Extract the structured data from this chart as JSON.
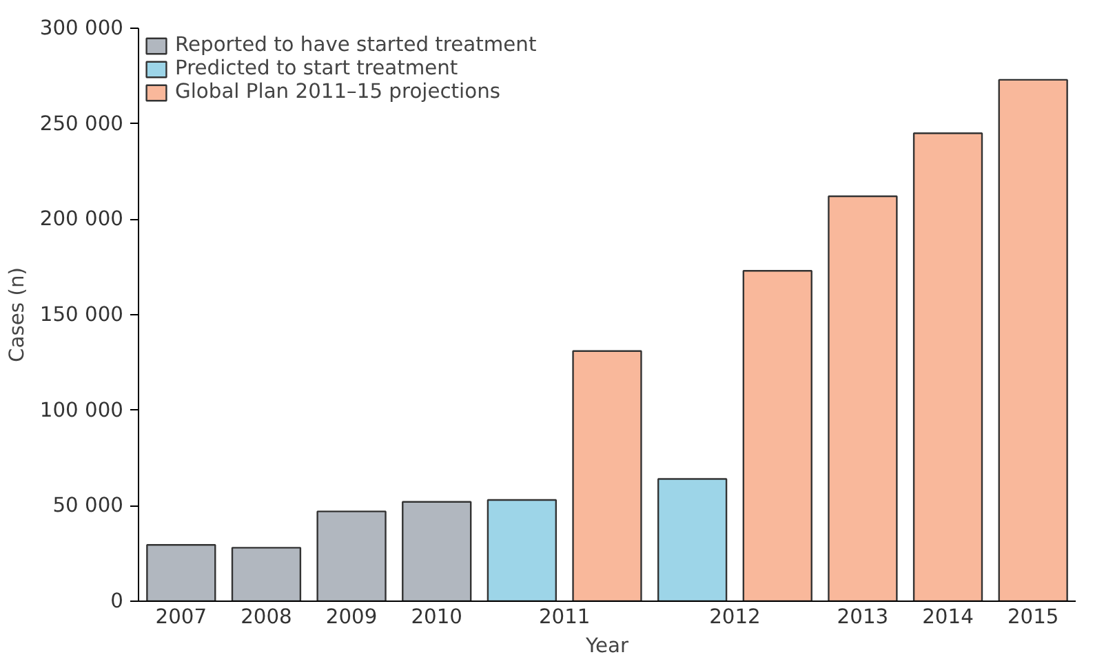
{
  "chart_data": {
    "type": "bar",
    "xlabel": "Year",
    "ylabel": "Cases (n)",
    "categories": [
      "2007",
      "2008",
      "2009",
      "2010",
      "2011",
      "2012",
      "2013",
      "2014",
      "2015"
    ],
    "series": [
      {
        "name": "Reported to have started treatment",
        "color": "#b1b7bf",
        "values": [
          29500,
          28000,
          47000,
          52000,
          null,
          null,
          null,
          null,
          null
        ]
      },
      {
        "name": "Predicted to start treatment",
        "color": "#9dd5e8",
        "values": [
          null,
          null,
          null,
          null,
          53000,
          64000,
          null,
          null,
          null
        ]
      },
      {
        "name": "Global Plan 2011–15 projections",
        "color": "#f9b89b",
        "values": [
          null,
          null,
          null,
          null,
          131000,
          173000,
          212000,
          245000,
          273000
        ]
      }
    ],
    "ylim": [
      0,
      300000
    ],
    "yticks": [
      {
        "value": 0,
        "label": "0"
      },
      {
        "value": 50000,
        "label": "50 000"
      },
      {
        "value": 100000,
        "label": "100 000"
      },
      {
        "value": 150000,
        "label": "150 000"
      },
      {
        "value": 200000,
        "label": "200 000"
      },
      {
        "value": 250000,
        "label": "250 000"
      },
      {
        "value": 300000,
        "label": "300 000"
      }
    ],
    "legend": "top left",
    "grid": false
  }
}
